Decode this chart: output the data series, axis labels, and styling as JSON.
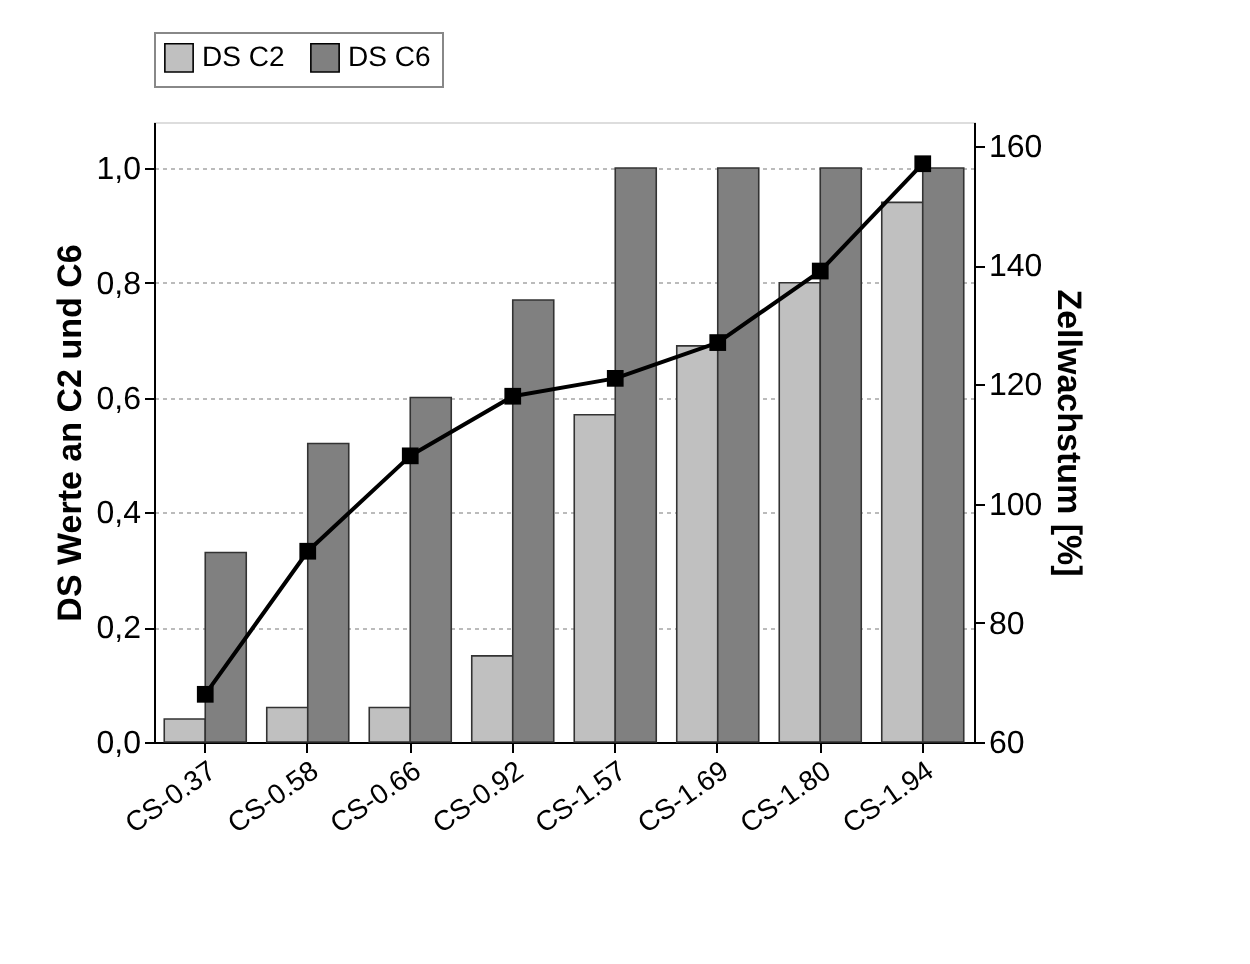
{
  "chart_data": {
    "type": "bar",
    "categories": [
      "CS-0.37",
      "CS-0.58",
      "CS-0.66",
      "CS-0.92",
      "CS-1.57",
      "CS-1.69",
      "CS-1.80",
      "CS-1.94"
    ],
    "series": [
      {
        "name": "DS C2",
        "color": "#c0c0c0",
        "values": [
          0.04,
          0.06,
          0.06,
          0.15,
          0.57,
          0.69,
          0.8,
          0.94
        ]
      },
      {
        "name": "DS C6",
        "color": "#808080",
        "values": [
          0.33,
          0.52,
          0.6,
          0.77,
          1.0,
          1.0,
          1.0,
          1.0
        ]
      },
      {
        "type": "line",
        "axis": "y2",
        "color": "#000000",
        "marker": "square",
        "values": [
          68,
          92,
          108,
          118,
          121,
          127,
          139,
          157
        ]
      }
    ],
    "ylabel": "DS Werte an C2 und C6",
    "y2label": "Zellwachstum [%]",
    "ylim": [
      0,
      1.08
    ],
    "yticks": [
      {
        "value": 0,
        "label": "0,0"
      },
      {
        "value": 0.2,
        "label": "0,2"
      },
      {
        "value": 0.4,
        "label": "0,4"
      },
      {
        "value": 0.6,
        "label": "0,6"
      },
      {
        "value": 0.8,
        "label": "0,8"
      },
      {
        "value": 1.0,
        "label": "1,0"
      }
    ],
    "y2lim": [
      60,
      164
    ],
    "y2ticks": [
      60,
      80,
      100,
      120,
      140,
      160
    ],
    "grid": "y",
    "legend": "top"
  }
}
